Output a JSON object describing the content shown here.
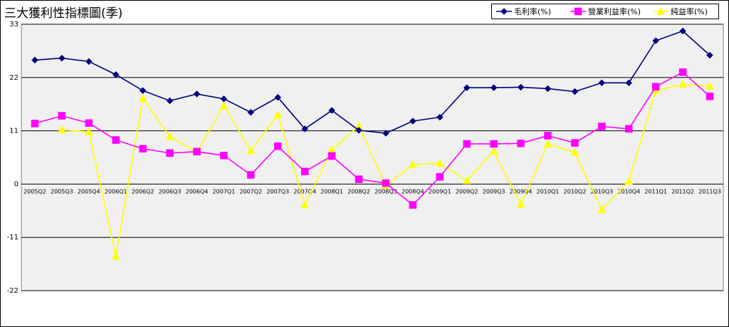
{
  "chart_data": {
    "type": "line",
    "title": "三大獲利性指標圖(季)",
    "categories": [
      "2005Q2",
      "2005Q3",
      "2005Q4",
      "2006Q1",
      "2006Q2",
      "2006Q3",
      "2006Q4",
      "2007Q1",
      "2007Q2",
      "2007Q3",
      "2007Q4",
      "2008Q1",
      "2008Q2",
      "2008Q3",
      "2008Q4",
      "2009Q1",
      "2009Q2",
      "2009Q3",
      "2009Q4",
      "2010Q1",
      "2010Q2",
      "2010Q3",
      "2010Q4",
      "2011Q1",
      "2011Q2",
      "2011Q3"
    ],
    "y_ticks": [
      "33",
      "22",
      "11",
      "0",
      "-11",
      "-22"
    ],
    "ylim": [
      -22,
      33
    ],
    "grid": true,
    "legend_position": "top-right",
    "series": [
      {
        "name": "毛利率(%)",
        "color": "#000080",
        "marker": "diamond",
        "values": [
          25.6,
          26.0,
          25.3,
          22.6,
          19.3,
          17.2,
          18.6,
          17.6,
          14.8,
          17.9,
          11.4,
          15.2,
          11.1,
          10.5,
          13.0,
          13.8,
          19.9,
          19.9,
          20.0,
          19.7,
          19.1,
          20.9,
          20.9,
          29.6,
          31.6,
          26.6
        ]
      },
      {
        "name": "營業利益率(%)",
        "color": "#ff00ff",
        "marker": "square",
        "values": [
          12.5,
          14.1,
          12.6,
          9.1,
          7.3,
          6.4,
          6.7,
          5.9,
          1.9,
          7.8,
          2.6,
          5.8,
          1.0,
          0.2,
          -4.3,
          1.5,
          8.3,
          8.3,
          8.4,
          10.0,
          8.5,
          11.9,
          11.4,
          20.1,
          23.1,
          18.1
        ]
      },
      {
        "name": "純益率(%)",
        "color": "#ffff00",
        "marker": "triangle",
        "values": [
          null,
          11.2,
          10.8,
          -14.9,
          17.7,
          9.8,
          6.6,
          16.2,
          6.9,
          14.3,
          -4.3,
          7.1,
          12.0,
          -0.3,
          4.0,
          4.3,
          0.7,
          6.8,
          -4.2,
          8.3,
          6.5,
          -5.3,
          0.6,
          19.3,
          20.6,
          20.2
        ]
      }
    ]
  }
}
